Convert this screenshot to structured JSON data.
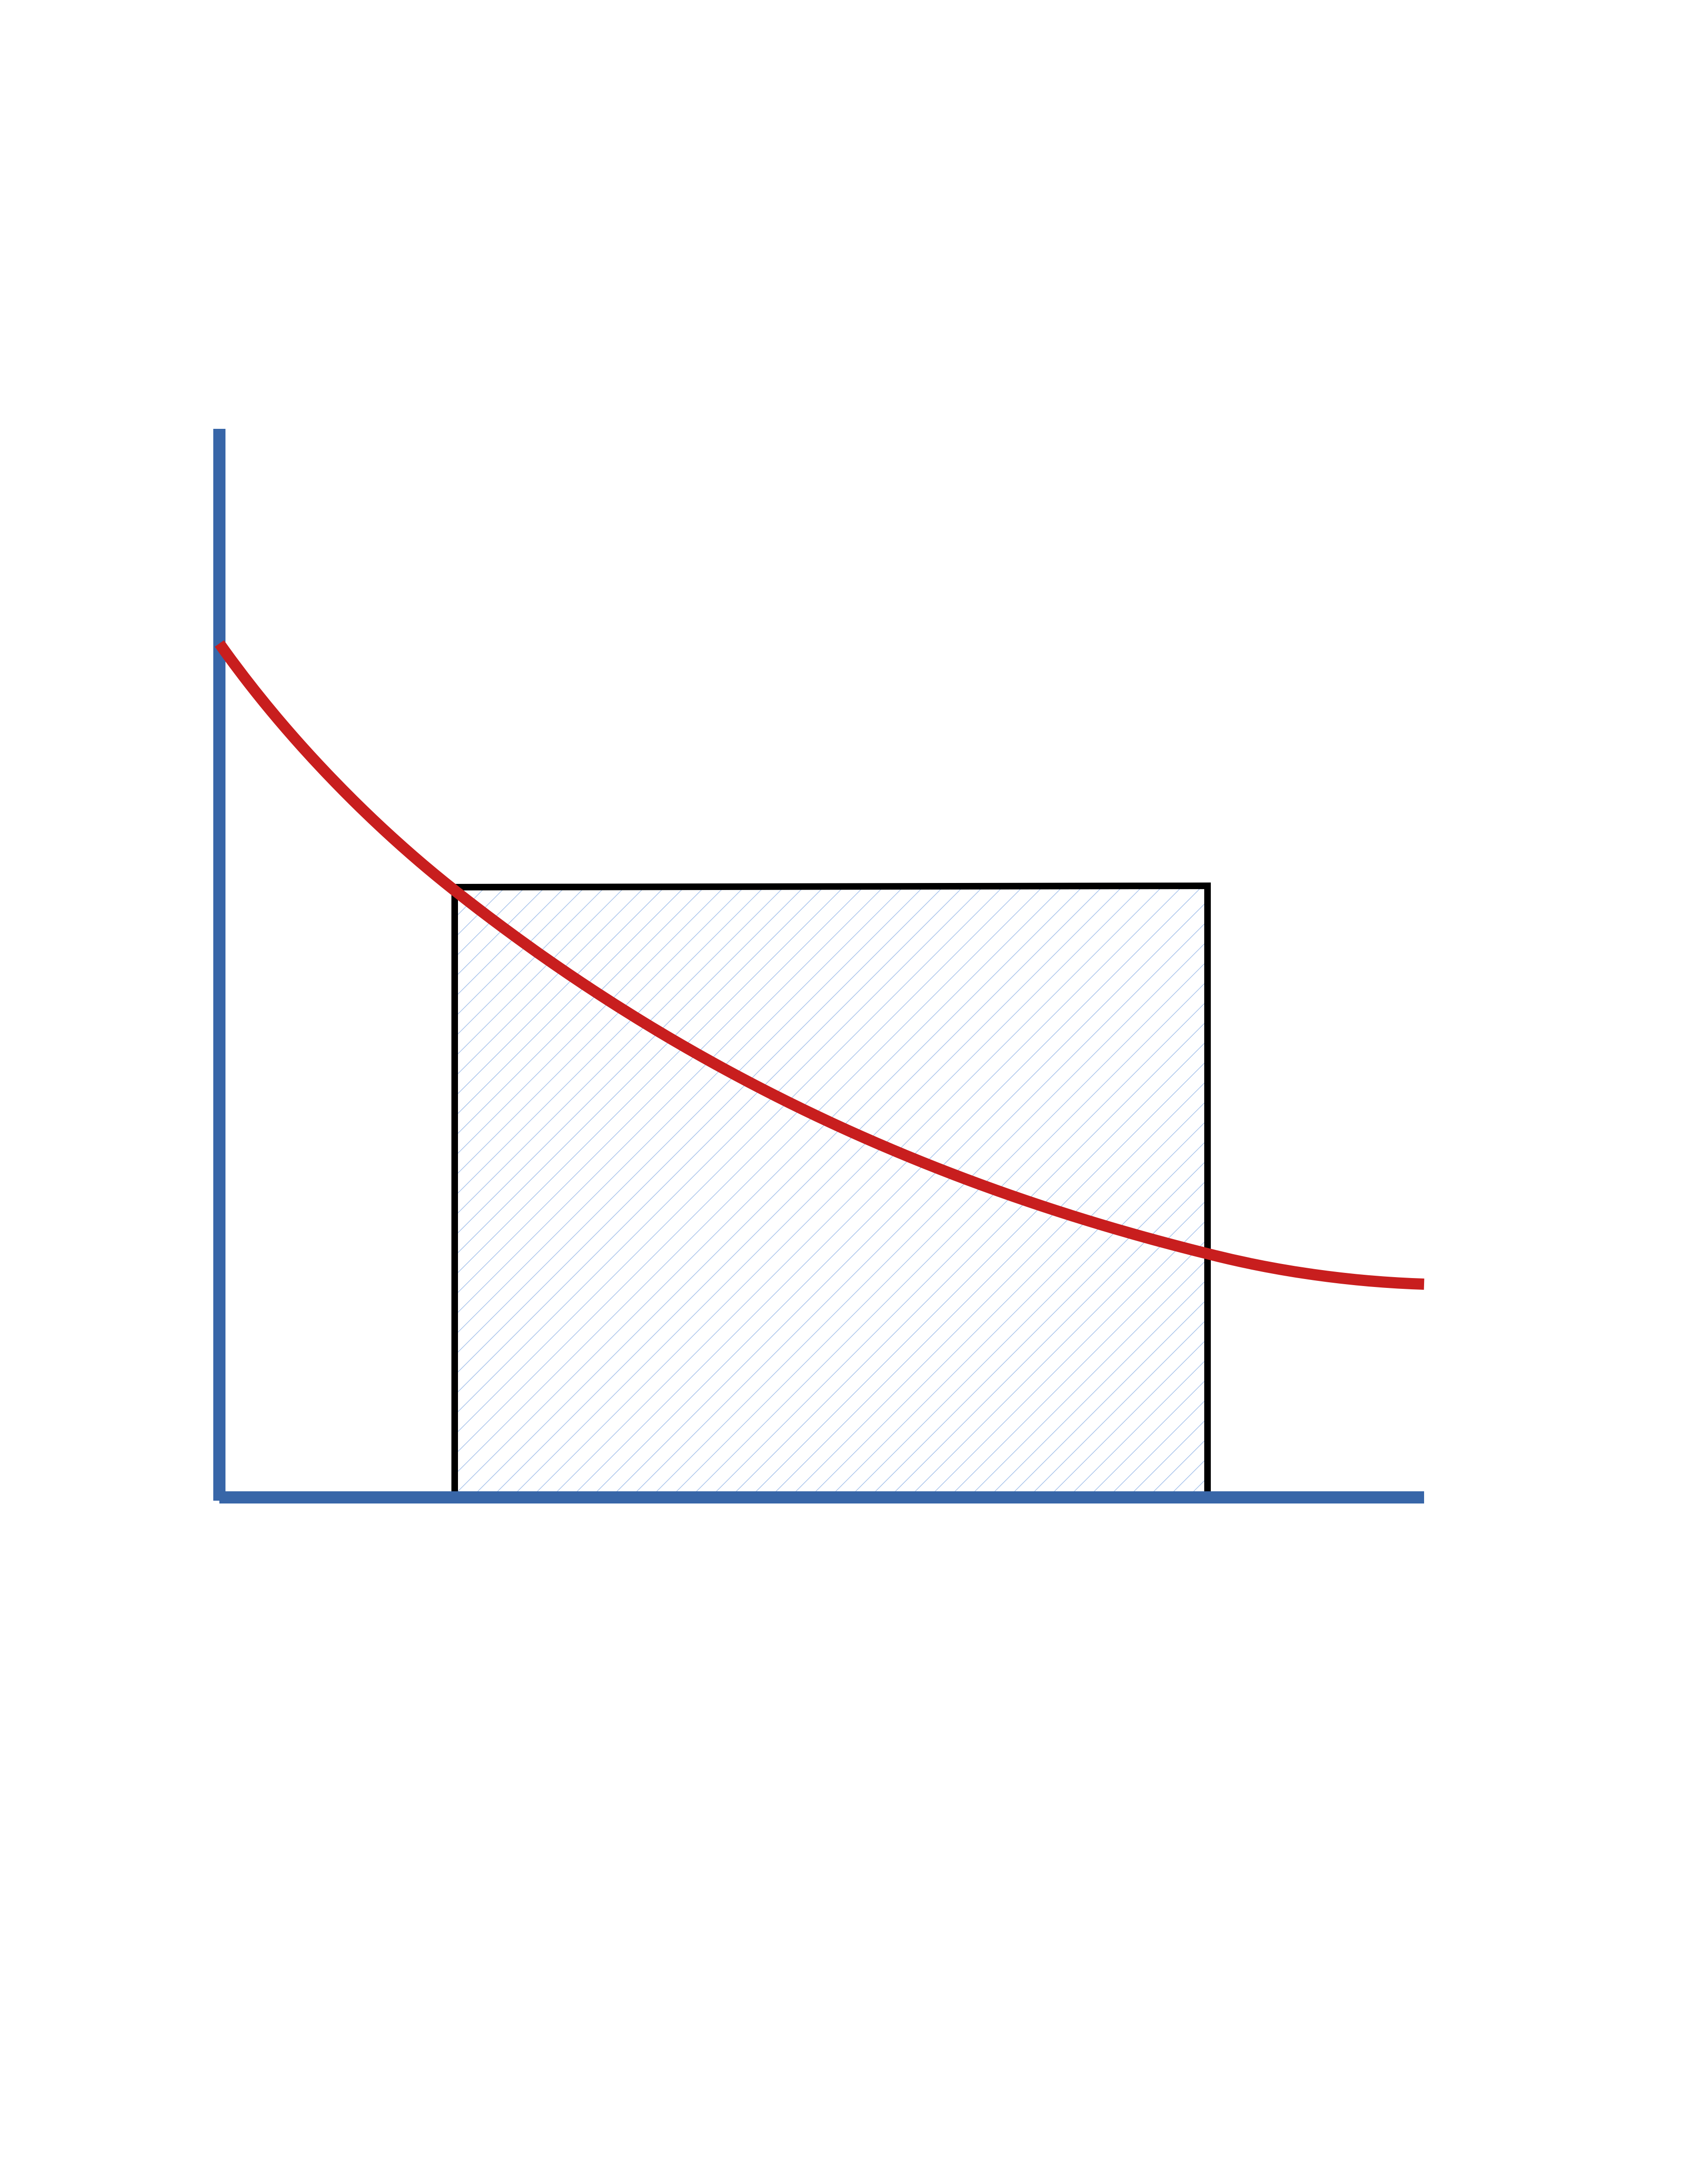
{
  "diagram": {
    "type": "area-under-curve-rectangle",
    "colors": {
      "axes": "#3866A8",
      "curve": "#C81E1E",
      "rectangle_outline": "#000000",
      "hatch": "#A9C4EB",
      "background": "#FFFFFF"
    },
    "elements": [
      "vertical-axis",
      "horizontal-axis",
      "decaying-curve",
      "hatched-rectangle"
    ]
  }
}
